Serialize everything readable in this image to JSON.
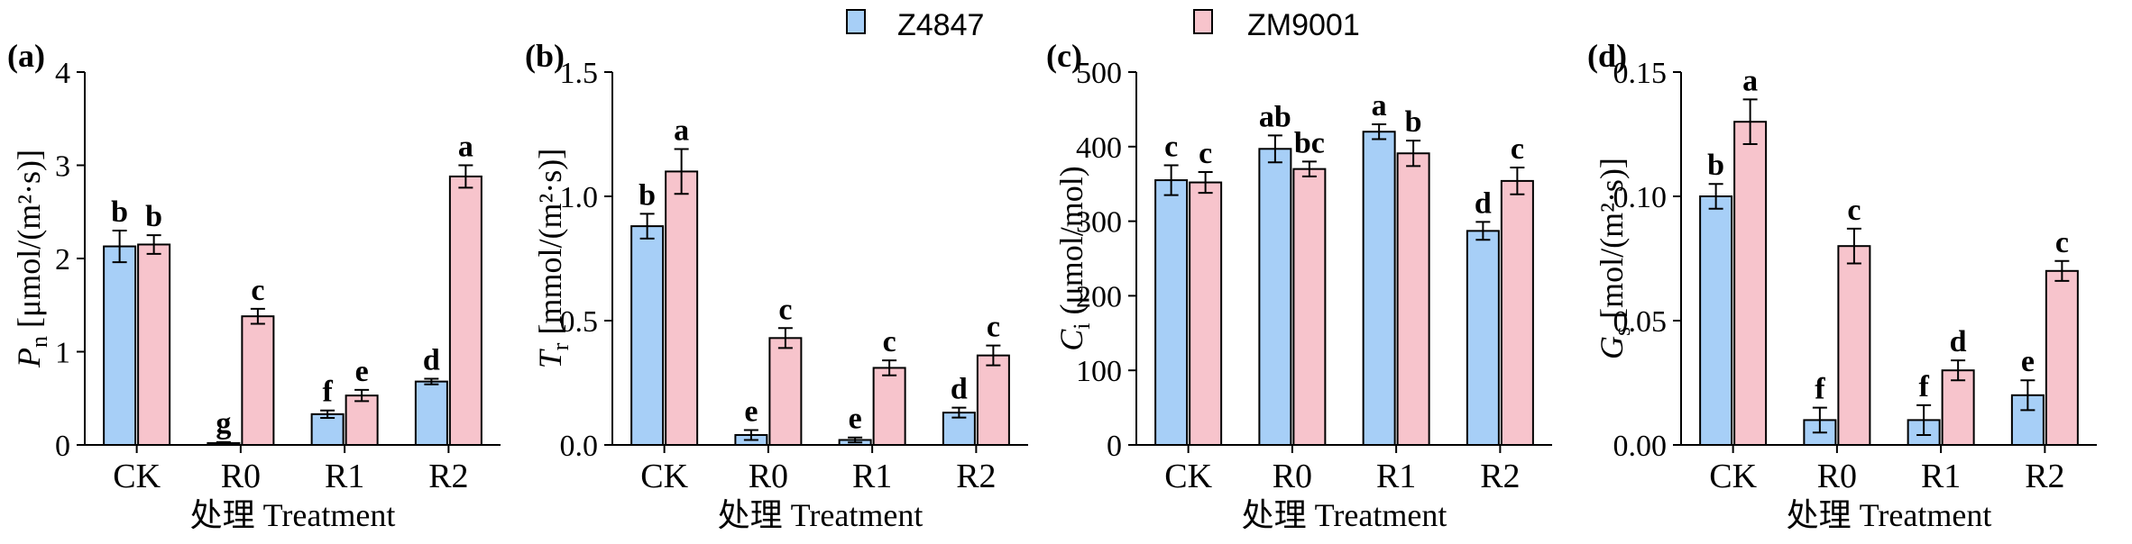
{
  "legend": {
    "items": [
      {
        "name": "Z4847",
        "color": "#a7cff7"
      },
      {
        "name": "ZM9001",
        "color": "#f7c4cc"
      }
    ]
  },
  "chart_data": [
    {
      "type": "bar",
      "panel": "(a)",
      "ylabel_sym": "P",
      "ylabel_sub": "n",
      "ylabel_unit": " [μmol/(m²·s)]",
      "xlabel": "处理 Treatment",
      "categories": [
        "CK",
        "R0",
        "R1",
        "R2"
      ],
      "ylim": [
        0,
        4
      ],
      "yticks": [
        "0",
        "1",
        "2",
        "3",
        "4"
      ],
      "series": [
        {
          "name": "Z4847",
          "values": [
            2.13,
            0.02,
            0.33,
            0.68
          ],
          "errors": [
            0.17,
            0.01,
            0.04,
            0.03
          ],
          "labels": [
            "b",
            "g",
            "f",
            "d"
          ]
        },
        {
          "name": "ZM9001",
          "values": [
            2.15,
            1.38,
            0.53,
            2.88
          ],
          "errors": [
            0.1,
            0.08,
            0.06,
            0.12
          ],
          "labels": [
            "b",
            "c",
            "e",
            "a"
          ]
        }
      ]
    },
    {
      "type": "bar",
      "panel": "(b)",
      "ylabel_sym": "T",
      "ylabel_sub": "r",
      "ylabel_unit": " [mmol/(m²·s)]",
      "xlabel": "处理 Treatment",
      "categories": [
        "CK",
        "R0",
        "R1",
        "R2"
      ],
      "ylim": [
        0,
        1.5
      ],
      "yticks": [
        "0.0",
        "0.5",
        "1.0",
        "1.5"
      ],
      "series": [
        {
          "name": "Z4847",
          "values": [
            0.88,
            0.04,
            0.02,
            0.13
          ],
          "errors": [
            0.05,
            0.02,
            0.01,
            0.02
          ],
          "labels": [
            "b",
            "e",
            "e",
            "d"
          ]
        },
        {
          "name": "ZM9001",
          "values": [
            1.1,
            0.43,
            0.31,
            0.36
          ],
          "errors": [
            0.09,
            0.04,
            0.03,
            0.04
          ],
          "labels": [
            "a",
            "c",
            "c",
            "c"
          ]
        }
      ]
    },
    {
      "type": "bar",
      "panel": "(c)",
      "ylabel_sym": "C",
      "ylabel_sub": "i",
      "ylabel_unit": " (μmol/mol)",
      "xlabel": "处理 Treatment",
      "categories": [
        "CK",
        "R0",
        "R1",
        "R2"
      ],
      "ylim": [
        0,
        500
      ],
      "yticks": [
        "0",
        "100",
        "200",
        "300",
        "400",
        "500"
      ],
      "series": [
        {
          "name": "Z4847",
          "values": [
            355,
            397,
            420,
            287
          ],
          "errors": [
            20,
            18,
            10,
            12
          ],
          "labels": [
            "c",
            "ab",
            "a",
            "d"
          ]
        },
        {
          "name": "ZM9001",
          "values": [
            352,
            370,
            391,
            354
          ],
          "errors": [
            14,
            10,
            17,
            18
          ],
          "labels": [
            "c",
            "bc",
            "b",
            "c"
          ]
        }
      ]
    },
    {
      "type": "bar",
      "panel": "(d)",
      "ylabel_sym": "G",
      "ylabel_sub": "s",
      "ylabel_unit": " [mol/(m²·s)]",
      "xlabel": "处理 Treatment",
      "categories": [
        "CK",
        "R0",
        "R1",
        "R2"
      ],
      "ylim": [
        0,
        0.15
      ],
      "yticks": [
        "0.00",
        "0.05",
        "0.10",
        "0.15"
      ],
      "series": [
        {
          "name": "Z4847",
          "values": [
            0.1,
            0.01,
            0.01,
            0.02
          ],
          "errors": [
            0.005,
            0.005,
            0.006,
            0.006
          ],
          "labels": [
            "b",
            "f",
            "f",
            "e"
          ]
        },
        {
          "name": "ZM9001",
          "values": [
            0.13,
            0.08,
            0.03,
            0.07
          ],
          "errors": [
            0.009,
            0.007,
            0.004,
            0.004
          ],
          "labels": [
            "a",
            "c",
            "d",
            "c"
          ]
        }
      ]
    }
  ]
}
